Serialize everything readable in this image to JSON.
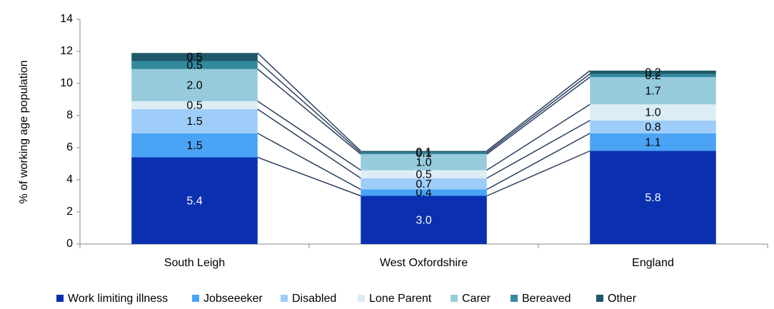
{
  "chart_data": {
    "type": "stacked_bar",
    "y_label": "% of working age population",
    "categories": [
      "South Leigh",
      "West Oxfordshire",
      "England"
    ],
    "series": [
      {
        "name": "Work limiting illness",
        "color": "#0a30b0",
        "values": [
          5.4,
          3.0,
          5.8
        ],
        "value_labels": [
          "5.4",
          "3.0",
          "5.8"
        ]
      },
      {
        "name": "Jobseeeker",
        "color": "#4aa3f5",
        "values": [
          1.5,
          0.4,
          1.1
        ],
        "value_labels": [
          "1.5",
          "0.4",
          "1.1"
        ]
      },
      {
        "name": "Disabled",
        "color": "#9fcdf9",
        "values": [
          1.5,
          0.7,
          0.8
        ],
        "value_labels": [
          "1.5",
          "0.7",
          "0.8"
        ]
      },
      {
        "name": "Lone Parent",
        "color": "#dcedf5",
        "values": [
          0.5,
          0.5,
          1.0
        ],
        "value_labels": [
          "0.5",
          "0.5",
          "1.0"
        ]
      },
      {
        "name": "Carer",
        "color": "#96cbdc",
        "values": [
          2.0,
          1.0,
          1.7
        ],
        "value_labels": [
          "2.0",
          "1.0",
          "1.7"
        ]
      },
      {
        "name": "Bereaved",
        "color": "#338a9e",
        "values": [
          0.5,
          0.1,
          0.2
        ],
        "value_labels": [
          "0.5",
          "0.1",
          "0.2"
        ]
      },
      {
        "name": "Other",
        "color": "#1f5869",
        "values": [
          0.5,
          0.1,
          0.2
        ],
        "value_labels": [
          "0.5",
          "0.1",
          "0.2"
        ]
      }
    ],
    "ylim": [
      0,
      14
    ],
    "yticks": [
      0,
      2,
      4,
      6,
      8,
      10,
      12,
      14
    ],
    "legend": "bottom"
  }
}
